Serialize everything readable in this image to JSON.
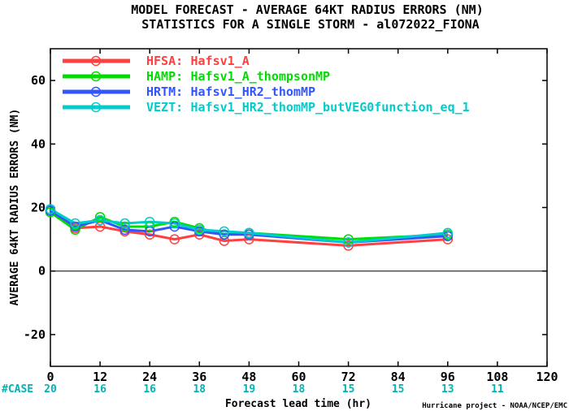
{
  "chart_data": {
    "type": "line",
    "title": "MODEL FORECAST - AVERAGE 64KT RADIUS ERRORS (NM)",
    "subtitle": "STATISTICS FOR A SINGLE STORM - al072022_FIONA",
    "xlabel": "Forecast lead time (hr)",
    "ylabel": "AVERAGE 64KT RADIUS ERRORS (NM)",
    "xlim": [
      0,
      120
    ],
    "ylim": [
      -30,
      70
    ],
    "x_ticks": [
      "0",
      "12",
      "24",
      "36",
      "48",
      "60",
      "72",
      "84",
      "96",
      "108",
      "120"
    ],
    "y_ticks": [
      "60",
      "40",
      "20",
      "0",
      "-20"
    ],
    "grid": false,
    "legend_position": "top-left",
    "x": [
      0,
      6,
      12,
      18,
      24,
      30,
      36,
      42,
      48,
      72,
      96
    ],
    "series": [
      {
        "name": "HFSA:",
        "label": "Hafsv1_A",
        "color": "#ff4040",
        "values": [
          19,
          13.5,
          14,
          12.5,
          11.5,
          10,
          11.5,
          9.5,
          10,
          8,
          10
        ]
      },
      {
        "name": "HAMP:",
        "label": "Hafsv1_A_thompsonMP",
        "color": "#00dd00",
        "values": [
          18.5,
          13,
          17,
          14,
          14,
          15.5,
          13.5,
          11.5,
          12,
          10,
          11.5
        ]
      },
      {
        "name": "HRTM:",
        "label": "Hafsv1_HR2_thomMP",
        "color": "#3355ff",
        "values": [
          19,
          14,
          16,
          13,
          12.5,
          14,
          12.5,
          11.5,
          11.5,
          9,
          11
        ]
      },
      {
        "name": "VEZT:",
        "label": "Hafsv1_HR2_thomMP_butVEG0function_eq_1",
        "color": "#00cccc",
        "values": [
          19.5,
          15,
          16,
          15,
          15.5,
          15,
          13,
          12.5,
          12,
          9,
          12
        ]
      }
    ],
    "case_label": "#CASE",
    "case_x": [
      0,
      12,
      24,
      36,
      48,
      60,
      72,
      84,
      96,
      108
    ],
    "case_counts": [
      "20",
      "16",
      "16",
      "18",
      "19",
      "18",
      "15",
      "15",
      "13",
      "11"
    ],
    "credit": "Hurricane project - NOAA/NCEP/EMC"
  }
}
